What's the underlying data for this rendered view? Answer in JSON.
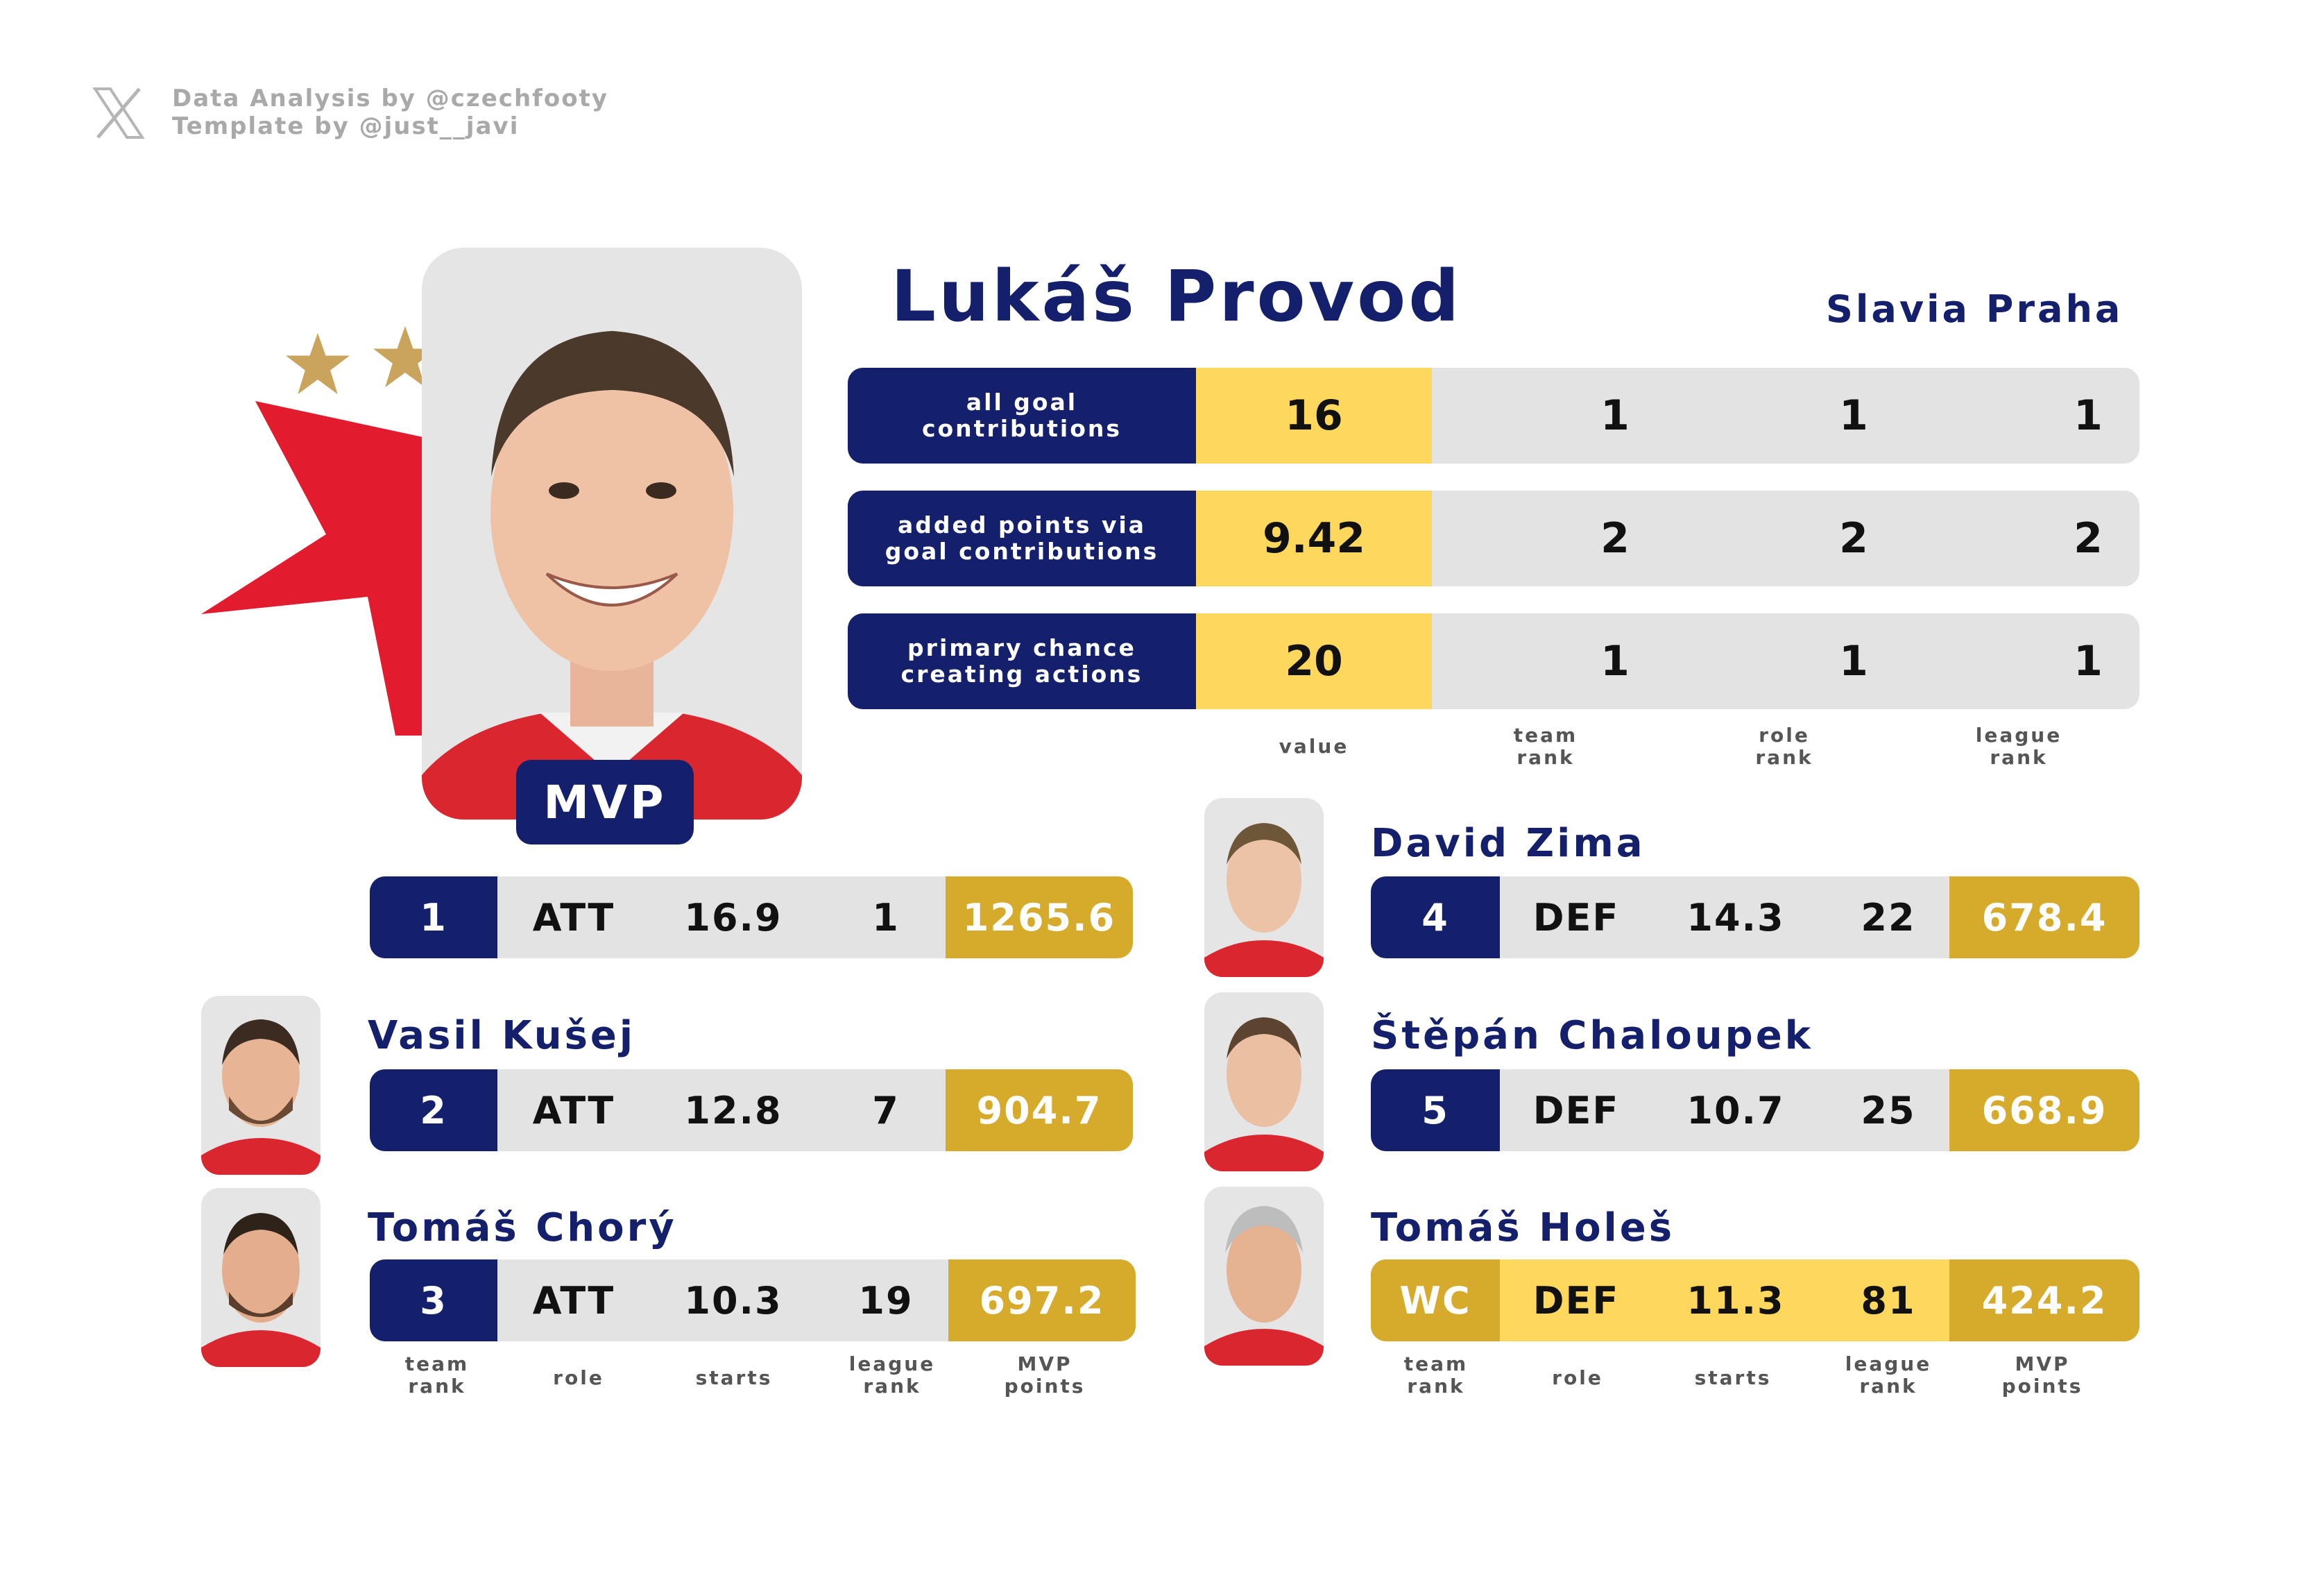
{
  "credits": {
    "line1": "Data Analysis by @czechfooty",
    "line2": "Template by @just__javi",
    "icon": "x-logo-icon"
  },
  "colors": {
    "navy": "#14206b",
    "yellow": "#fdd85c",
    "gold": "#d6ab2c",
    "grey": "#e4e3e4",
    "red": "#e31b2f"
  },
  "mvp": {
    "name": "Lukáš Provod",
    "club": "Slavia Praha",
    "badge": "MVP",
    "stats": [
      {
        "label": "all goal\ncontributions",
        "value": "16",
        "team_rank": "1",
        "role_rank": "1",
        "league_rank": "1"
      },
      {
        "label": "added points via\ngoal contributions",
        "value": "9.42",
        "team_rank": "2",
        "role_rank": "2",
        "league_rank": "2"
      },
      {
        "label": "primary chance\ncreating actions",
        "value": "20",
        "team_rank": "1",
        "role_rank": "1",
        "league_rank": "1"
      }
    ],
    "stat_captions": {
      "value": "value",
      "team_rank": "team\nrank",
      "role_rank": "role\nrank",
      "league_rank": "league\nrank"
    },
    "row": {
      "team_rank": "1",
      "role": "ATT",
      "starts": "16.9",
      "league_rank": "1",
      "mvp_points": "1265.6"
    }
  },
  "left_players": [
    {
      "name": "Vasil Kušej",
      "team_rank": "2",
      "role": "ATT",
      "starts": "12.8",
      "league_rank": "7",
      "mvp_points": "904.7"
    },
    {
      "name": "Tomáš Chorý",
      "team_rank": "3",
      "role": "ATT",
      "starts": "10.3",
      "league_rank": "19",
      "mvp_points": "697.2"
    }
  ],
  "right_players": [
    {
      "name": "David Zima",
      "team_rank": "4",
      "role": "DEF",
      "starts": "14.3",
      "league_rank": "22",
      "mvp_points": "678.4"
    },
    {
      "name": "Štěpán Chaloupek",
      "team_rank": "5",
      "role": "DEF",
      "starts": "10.7",
      "league_rank": "25",
      "mvp_points": "668.9"
    },
    {
      "name": "Tomáš Holeš",
      "team_rank": "WC",
      "role": "DEF",
      "starts": "11.3",
      "league_rank": "81",
      "mvp_points": "424.2"
    }
  ],
  "row_captions": {
    "team_rank": "team\nrank",
    "role": "role",
    "starts": "starts",
    "league_rank": "league\nrank",
    "mvp_points": "MVP\npoints"
  }
}
